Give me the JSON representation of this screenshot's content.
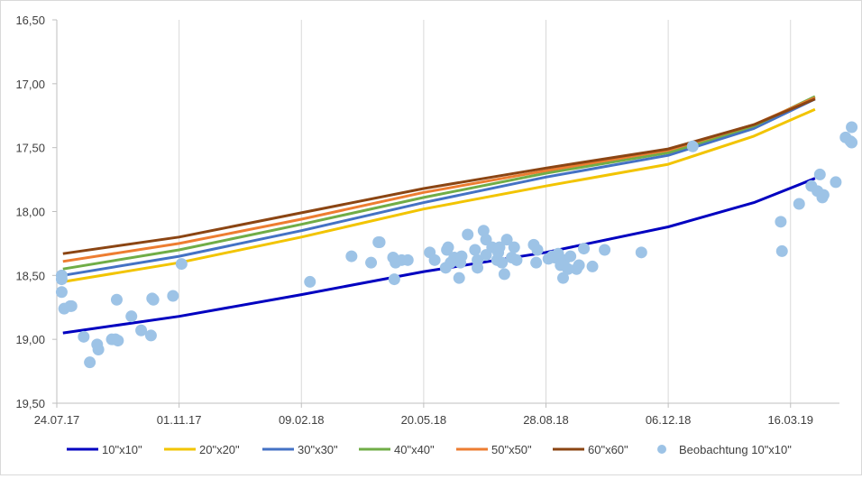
{
  "chart_data": {
    "type": "line",
    "title": "",
    "xlabel": "",
    "ylabel": "",
    "y_axis_reversed": true,
    "ylim": [
      16.5,
      19.5
    ],
    "y_ticks": [
      "16,50",
      "17,00",
      "17,50",
      "18,00",
      "18,50",
      "19,00",
      "19,50"
    ],
    "y_tick_values": [
      16.5,
      17.0,
      17.5,
      18.0,
      18.5,
      19.0,
      19.5
    ],
    "x_ticks": [
      "24.07.17",
      "01.11.17",
      "09.02.18",
      "20.05.18",
      "28.08.18",
      "06.12.18",
      "16.03.19"
    ],
    "x_tick_days": [
      0,
      100,
      200,
      300,
      400,
      500,
      600
    ],
    "xlim_days": [
      0,
      640
    ],
    "x_unit": "days since 24.07.17",
    "series": [
      {
        "name": "10\"x10\"",
        "color": "#0000c0",
        "type": "line",
        "x": [
          5,
          100,
          200,
          300,
          400,
          500,
          570,
          620
        ],
        "y": [
          18.95,
          18.82,
          18.65,
          18.47,
          18.32,
          18.12,
          17.93,
          17.74
        ]
      },
      {
        "name": "20\"x20\"",
        "color": "#f2c400",
        "type": "line",
        "x": [
          5,
          100,
          200,
          300,
          400,
          500,
          570,
          620
        ],
        "y": [
          18.55,
          18.4,
          18.2,
          17.98,
          17.8,
          17.63,
          17.41,
          17.2
        ]
      },
      {
        "name": "30\"x30\"",
        "color": "#4472c4",
        "type": "line",
        "x": [
          5,
          100,
          200,
          300,
          400,
          500,
          570,
          620
        ],
        "y": [
          18.5,
          18.35,
          18.15,
          17.93,
          17.73,
          17.56,
          17.35,
          17.12
        ]
      },
      {
        "name": "40\"x40\"",
        "color": "#70ad47",
        "type": "line",
        "x": [
          5,
          100,
          200,
          300,
          400,
          500,
          570,
          620
        ],
        "y": [
          18.45,
          18.3,
          18.1,
          17.89,
          17.7,
          17.54,
          17.33,
          17.1
        ]
      },
      {
        "name": "50\"x50\"",
        "color": "#ed7d31",
        "type": "line",
        "x": [
          5,
          100,
          200,
          300,
          400,
          500,
          570,
          620
        ],
        "y": [
          18.39,
          18.25,
          18.06,
          17.85,
          17.68,
          17.52,
          17.32,
          17.11
        ]
      },
      {
        "name": "60\"x60\"",
        "color": "#8b4513",
        "type": "line",
        "x": [
          5,
          100,
          200,
          300,
          400,
          500,
          570,
          620
        ],
        "y": [
          18.33,
          18.2,
          18.01,
          17.82,
          17.66,
          17.51,
          17.32,
          17.12
        ]
      },
      {
        "name": "Beobachtung 10\"x10\"",
        "color": "#9dc3e6",
        "type": "scatter",
        "x": [
          4,
          4,
          4,
          6,
          11,
          12,
          22,
          27,
          33,
          34,
          45,
          48,
          49,
          50,
          61,
          69,
          77,
          78,
          79,
          95,
          102,
          207,
          241,
          257,
          263,
          264,
          275,
          276,
          277,
          282,
          287,
          305,
          309,
          318,
          319,
          320,
          322,
          325,
          329,
          330,
          331,
          336,
          342,
          344,
          344,
          349,
          351,
          351,
          356,
          360,
          361,
          362,
          364,
          366,
          368,
          372,
          374,
          376,
          390,
          392,
          393,
          402,
          405,
          407,
          410,
          412,
          414,
          415,
          418,
          420,
          425,
          427,
          431,
          438,
          448,
          478,
          520,
          592,
          593,
          607,
          617,
          622,
          624,
          626,
          627,
          637,
          645,
          649,
          650,
          650
        ],
        "y": [
          18.5,
          18.53,
          18.63,
          18.76,
          18.74,
          18.74,
          18.98,
          19.18,
          19.04,
          19.08,
          19.0,
          19.0,
          18.69,
          19.01,
          18.82,
          18.93,
          18.97,
          18.68,
          18.69,
          18.66,
          18.41,
          18.55,
          18.35,
          18.4,
          18.24,
          18.24,
          18.36,
          18.53,
          18.4,
          18.38,
          18.38,
          18.32,
          18.38,
          18.44,
          18.3,
          18.28,
          18.4,
          18.36,
          18.52,
          18.4,
          18.35,
          18.18,
          18.3,
          18.44,
          18.38,
          18.15,
          18.22,
          18.34,
          18.28,
          18.38,
          18.32,
          18.28,
          18.4,
          18.49,
          18.22,
          18.36,
          18.28,
          18.38,
          18.26,
          18.4,
          18.3,
          18.37,
          18.35,
          18.36,
          18.33,
          18.42,
          18.52,
          18.38,
          18.45,
          18.35,
          18.45,
          18.42,
          18.29,
          18.43,
          18.3,
          18.32,
          17.49,
          18.08,
          18.31,
          17.94,
          17.8,
          17.84,
          17.71,
          17.89,
          17.87,
          17.77,
          17.42,
          17.45,
          17.34,
          17.46
        ]
      }
    ],
    "legend_position": "bottom",
    "grid": "vertical"
  }
}
